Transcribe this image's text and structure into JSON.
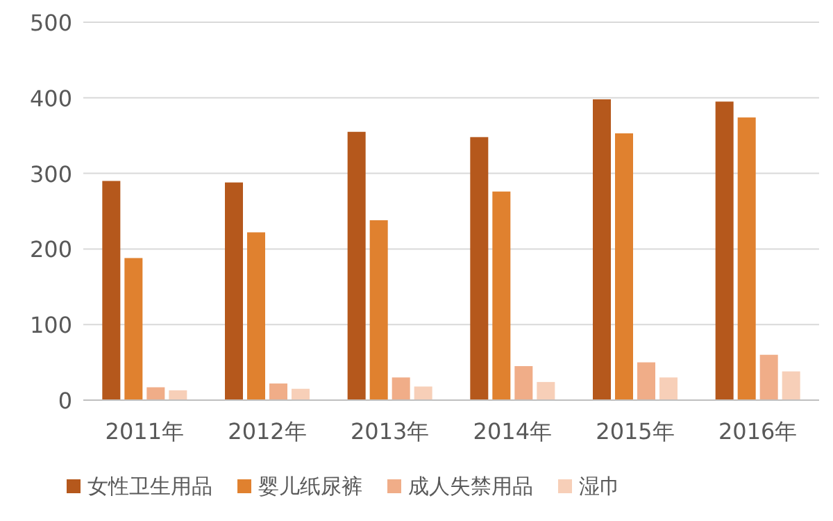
{
  "chart_data": {
    "type": "bar",
    "categories": [
      "2011年",
      "2012年",
      "2013年",
      "2014年",
      "2015年",
      "2016年"
    ],
    "series": [
      {
        "name": "女性卫生用品",
        "color": "#b5581c",
        "values": [
          290,
          288,
          355,
          348,
          398,
          395
        ]
      },
      {
        "name": "婴儿纸尿裤",
        "color": "#e0812f",
        "values": [
          188,
          222,
          238,
          276,
          353,
          374
        ]
      },
      {
        "name": "成人失禁用品",
        "color": "#f0ad88",
        "values": [
          17,
          22,
          30,
          45,
          50,
          60
        ]
      },
      {
        "name": "湿巾",
        "color": "#f7cfb8",
        "values": [
          13,
          15,
          18,
          24,
          30,
          38
        ]
      }
    ],
    "ylim": [
      0,
      500
    ],
    "yticks": [
      0,
      100,
      200,
      300,
      400,
      500
    ],
    "grid": "y",
    "legend": "bottom"
  }
}
